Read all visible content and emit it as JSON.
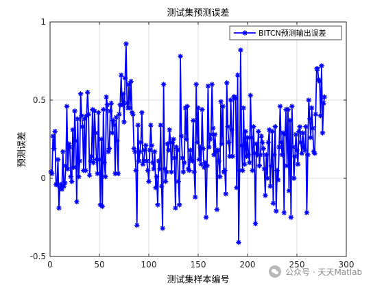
{
  "chart_data": {
    "type": "line",
    "title": "测试集预测误差",
    "xlabel": "测试集样本编号",
    "ylabel": "预测误差",
    "xlim": [
      0,
      300
    ],
    "ylim": [
      -0.5,
      1
    ],
    "xticks": [
      0,
      50,
      100,
      150,
      200,
      250,
      300
    ],
    "yticks": [
      -0.5,
      0,
      0.5,
      1
    ],
    "grid": true,
    "legend_position": "top-right",
    "series": [
      {
        "name": "BITCN预测输出误差",
        "color": "#0000ff",
        "marker": "asterisk",
        "values": [
          0.04,
          0.03,
          0.27,
          0.19,
          0.3,
          -0.04,
          -0.04,
          0.12,
          -0.19,
          -0.06,
          -0.04,
          -0.07,
          0.17,
          -0.05,
          -0.03,
          0.08,
          0.46,
          0.06,
          0.22,
          0.2,
          0.01,
          -0.02,
          0.31,
          0.07,
          0.43,
          0.24,
          -0.15,
          0.38,
          0.01,
          0.11,
          0.54,
          0.4,
          0.33,
          0.05,
          0.38,
          0.05,
          0.4,
          0.55,
          0.41,
          0.02,
          0.11,
          0.14,
          0.44,
          0.1,
          0.43,
          0.29,
          0.12,
          0.03,
          0.42,
          0.12,
          -0.17,
          0.25,
          -0.18,
          0.44,
          0.1,
          0.01,
          0.52,
          0.47,
          0.17,
          0.19,
          0.43,
          0.48,
          0.29,
          0.37,
          0.34,
          0.03,
          0.39,
          0.24,
          0.03,
          0.41,
          0.47,
          0.66,
          0.47,
          0.54,
          0.36,
          0.64,
          0.86,
          0.48,
          0.45,
          0.6,
          0.45,
          0.62,
          0.42,
          0.41,
          0.19,
          0.17,
          0.05,
          -0.3,
          0.34,
          0.11,
          0.17,
          0.23,
          0.42,
          0.09,
          0.11,
          0.18,
          0.21,
          0.11,
          0.05,
          -0.02,
          0.18,
          0.34,
          0.21,
          0.1,
          0.06,
          0.17,
          -0.06,
          0.01,
          -0.17,
          0.11,
          0.06,
          0.34,
          -0.05,
          -0.32,
          0.6,
          0.06,
          -0.02,
          0.04,
          0.22,
          0.18,
          0.31,
          0.23,
          0.04,
          0.23,
          0.25,
          0.13,
          -0.19,
          0.2,
          0.18,
          -0.02,
          -0.17,
          0.78,
          0.27,
          0.13,
          0.04,
          0.1,
          0.45,
          0.25,
          0.46,
          0.06,
          0.05,
          0.18,
          0.12,
          0.11,
          0.37,
          0.04,
          -0.12,
          0.6,
          0.23,
          0.45,
          0.12,
          0.2,
          0.09,
          0.44,
          0.19,
          0.07,
          0.1,
          -0.25,
          0.08,
          0.59,
          0.2,
          0.25,
          0.28,
          0.6,
          0.32,
          0.15,
          0.28,
          0.17,
          -0.2,
          0.18,
          0.11,
          0.01,
          0.49,
          0.22,
          0.46,
          0.04,
          0.05,
          -0.1,
          0.61,
          0.33,
          0.23,
          0.14,
          0.5,
          0.31,
          0.14,
          0.52,
          0.52,
          0.51,
          -0.06,
          0.66,
          -0.41,
          0.05,
          0.82,
          0.21,
          0.05,
          0.45,
          0.09,
          0.3,
          0.14,
          0.26,
          0.15,
          0.1,
          0.53,
          0.26,
          0.05,
          0.33,
          0.16,
          -0.29,
          0.22,
          0.15,
          0.3,
          0.08,
          0.15,
          0.27,
          0.23,
          0.19,
          0.06,
          -0.11,
          0.15,
          0.0,
          0.23,
          0.31,
          -0.05,
          0.08,
          0.3,
          -0.16,
          0.15,
          0.33,
          -0.21,
          0.05,
          -0.01,
          0.2,
          0.46,
          0.23,
          0.15,
          0.29,
          -0.22,
          0.28,
          0.44,
          0.08,
          0.44,
          -0.08,
          0.37,
          -0.25,
          0.46,
          0.2,
          0.0,
          0.14,
          0.28,
          0.18,
          0.09,
          0.3,
          0.33,
          0.23,
          0.16,
          0.29,
          0.2,
          0.18,
          0.33,
          -0.22,
          0.15,
          0.5,
          0.38,
          0.26,
          0.45,
          0.32,
          0.17,
          0.16,
          0.41,
          0.7,
          0.7,
          0.63,
          0.62,
          0.4,
          0.72,
          0.29,
          0.48,
          0.52
        ]
      }
    ]
  },
  "watermark": {
    "text": "公众号 · 天天Matlab",
    "icon": "wechat-logo-icon"
  }
}
